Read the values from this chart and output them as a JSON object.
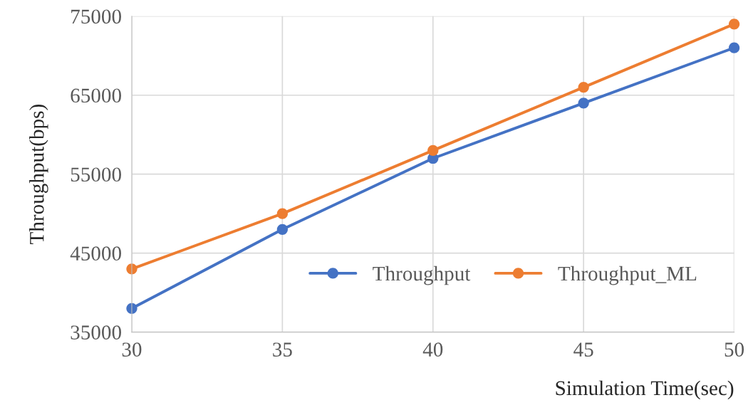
{
  "chart_data": {
    "type": "line",
    "xlabel": "Simulation Time(sec)",
    "ylabel": "Throughput(bps)",
    "x": [
      30,
      35,
      40,
      45,
      50
    ],
    "series": [
      {
        "name": "Throughput",
        "color": "#4472c4",
        "values": [
          38000,
          48000,
          57000,
          64000,
          71000
        ]
      },
      {
        "name": "Throughput_ML",
        "color": "#ed7d31",
        "values": [
          43000,
          50000,
          58000,
          66000,
          74000
        ]
      }
    ],
    "xlim": [
      30,
      50
    ],
    "xticks": [
      30,
      35,
      40,
      45,
      50
    ],
    "ylim": [
      35000,
      75000
    ],
    "yticks": [
      35000,
      45000,
      55000,
      65000,
      75000
    ],
    "grid": true,
    "legend": "bottom right",
    "marker": "circle",
    "line_style": "solid"
  }
}
